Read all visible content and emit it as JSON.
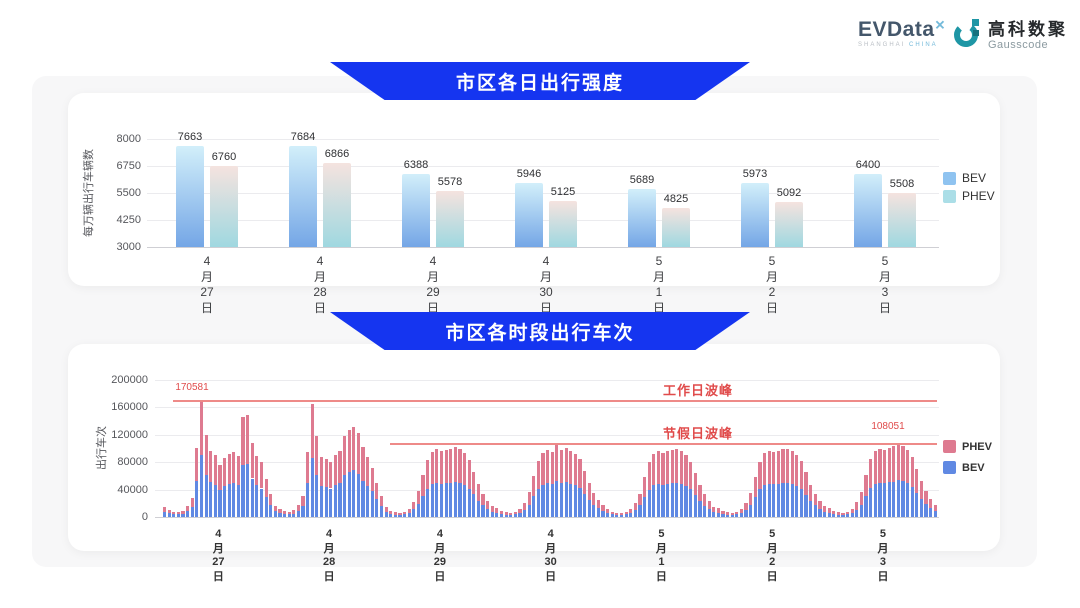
{
  "header": {
    "evdata": {
      "text": "EVData",
      "superscript": "✕",
      "sub_left": "SHANGHAI",
      "sub_right": "CHINA"
    },
    "gausscode": {
      "name_cn": "高科数聚",
      "name_en": "Gausscode"
    }
  },
  "colors": {
    "banner_blue": "#1535f0",
    "chart1_bev_gradient_top": "#d2effa",
    "chart1_bev_gradient_bottom": "#74a6e6",
    "chart1_phev_gradient_top": "#f5e3df",
    "chart1_phev_gradient_bottom": "#9fd8e0",
    "chart1_legend_bev": "#8fc3f0",
    "chart1_legend_phev": "#abdee7",
    "chart2_bev": "#6089e3",
    "chart2_phev": "#de7a90",
    "red_annotation": "#e04b4b",
    "red_line": "#ee8a88"
  },
  "chart_data": [
    {
      "type": "bar",
      "title": "市区各日出行强度",
      "ylabel": "每万辆出行车辆数",
      "ylim": [
        3000,
        8000
      ],
      "yticks": [
        3000,
        4250,
        5500,
        6750,
        8000
      ],
      "grid": true,
      "legend_position": "right",
      "categories": [
        "4月27日",
        "4月28日",
        "4月29日",
        "4月30日",
        "5月1日",
        "5月2日",
        "5月3日"
      ],
      "series": [
        {
          "name": "BEV",
          "values": [
            7663,
            7684,
            6388,
            5946,
            5689,
            5973,
            6400
          ]
        },
        {
          "name": "PHEV",
          "values": [
            6760,
            6866,
            5578,
            5125,
            4825,
            5092,
            5508
          ]
        }
      ]
    },
    {
      "type": "bar",
      "stacked": true,
      "title": "市区各时段出行车次",
      "ylabel": "出行车次",
      "ylim": [
        0,
        200000
      ],
      "yticks": [
        0,
        40000,
        80000,
        120000,
        160000,
        200000
      ],
      "grid": true,
      "legend_position": "right",
      "hours_per_day": 24,
      "categories": [
        "4月27日",
        "4月28日",
        "4月29日",
        "4月30日",
        "5月1日",
        "5月2日",
        "5月3日"
      ],
      "legend": [
        "PHEV",
        "BEV"
      ],
      "annotations": [
        {
          "name": "workday-peak",
          "label": "工作日波峰",
          "value": 170581
        },
        {
          "name": "holiday-peak",
          "label": "节假日波峰",
          "value": 108051
        }
      ],
      "days": [
        {
          "date": "4月27日",
          "bev": [
            7800,
            5200,
            4200,
            3900,
            4700,
            8300,
            14600,
            52500,
            90000,
            61900,
            50400,
            47300,
            39500,
            44700,
            47800,
            49400,
            46300,
            75900,
            77500,
            56200,
            46300,
            41600,
            28600,
            17200
          ],
          "phev": [
            7200,
            4800,
            3800,
            3600,
            4300,
            7700,
            13400,
            48500,
            80581,
            57100,
            46600,
            43700,
            36500,
            41300,
            44200,
            45600,
            42700,
            70100,
            71500,
            51800,
            42700,
            38400,
            26400,
            15800
          ]
        },
        {
          "date": "4月28日",
          "bev": [
            8300,
            5700,
            4400,
            4200,
            4900,
            8800,
            15600,
            49400,
            85800,
            61400,
            45800,
            43700,
            41600,
            46800,
            49900,
            61400,
            66000,
            68600,
            63400,
            53000,
            45800,
            37400,
            26000,
            15600
          ],
          "phev": [
            7700,
            5300,
            4100,
            3800,
            4600,
            8200,
            14400,
            45600,
            79200,
            56600,
            42200,
            40300,
            38400,
            43200,
            46100,
            56600,
            61000,
            63400,
            58600,
            49000,
            42200,
            34600,
            24000,
            14400
          ]
        },
        {
          "date": "4月29日",
          "bev": [
            7000,
            4500,
            3500,
            3300,
            4000,
            6000,
            11000,
            19000,
            31000,
            41500,
            47500,
            49500,
            48000,
            49000,
            50000,
            51000,
            49500,
            46500,
            41500,
            33000,
            24000,
            17000,
            12000,
            8000
          ],
          "phev": [
            7000,
            4500,
            3500,
            3200,
            4000,
            6000,
            11000,
            19000,
            31000,
            41500,
            47500,
            49500,
            48000,
            49000,
            50000,
            51000,
            49500,
            46500,
            41500,
            33000,
            24000,
            17000,
            12000,
            8000
          ]
        },
        {
          "date": "4月30日",
          "bev": [
            6500,
            4300,
            3400,
            3200,
            3900,
            5800,
            10500,
            18000,
            30000,
            41000,
            47000,
            49000,
            47500,
            52500,
            49000,
            50500,
            48500,
            46000,
            42000,
            33500,
            24500,
            17500,
            12500,
            8500
          ],
          "phev": [
            6500,
            4200,
            3400,
            3100,
            3900,
            5700,
            10500,
            18000,
            30000,
            41000,
            47000,
            49000,
            47500,
            52500,
            49000,
            50500,
            48500,
            46000,
            42000,
            33500,
            24500,
            17500,
            12500,
            8500
          ]
        },
        {
          "date": "5月1日",
          "bev": [
            6000,
            4000,
            3300,
            3000,
            3800,
            5500,
            10000,
            17000,
            29000,
            40000,
            46000,
            48000,
            47000,
            48000,
            49000,
            49500,
            48000,
            45000,
            40500,
            32000,
            23000,
            16500,
            11500,
            7500
          ],
          "phev": [
            6000,
            4000,
            3200,
            3000,
            3700,
            5500,
            10000,
            17000,
            29000,
            40000,
            46000,
            48000,
            47000,
            48000,
            49000,
            49500,
            48000,
            45000,
            40500,
            32000,
            23000,
            16500,
            11500,
            7500
          ]
        },
        {
          "date": "5月2日",
          "bev": [
            6300,
            4100,
            3300,
            3100,
            3800,
            5600,
            10500,
            17500,
            29500,
            40500,
            46500,
            48500,
            47500,
            48500,
            49500,
            50000,
            48500,
            45500,
            41000,
            32500,
            23500,
            17000,
            12000,
            8000
          ],
          "phev": [
            6200,
            4100,
            3300,
            3100,
            3800,
            5600,
            10500,
            17500,
            29500,
            40500,
            46500,
            48500,
            47500,
            48500,
            49500,
            50000,
            48500,
            45500,
            41000,
            32500,
            23500,
            17000,
            12000,
            8000
          ]
        },
        {
          "date": "5月3日",
          "bev": [
            6500,
            4300,
            3400,
            3200,
            3900,
            5800,
            10800,
            18000,
            30500,
            42000,
            48000,
            50000,
            49000,
            50500,
            51500,
            54051,
            52000,
            49000,
            44000,
            35000,
            26000,
            19000,
            13500,
            9000
          ],
          "phev": [
            6500,
            4200,
            3300,
            3100,
            3800,
            5700,
            10700,
            18000,
            30500,
            42000,
            48000,
            50000,
            49000,
            50500,
            51500,
            54000,
            52000,
            49000,
            44000,
            35000,
            26000,
            19000,
            13500,
            9000
          ]
        }
      ]
    }
  ]
}
